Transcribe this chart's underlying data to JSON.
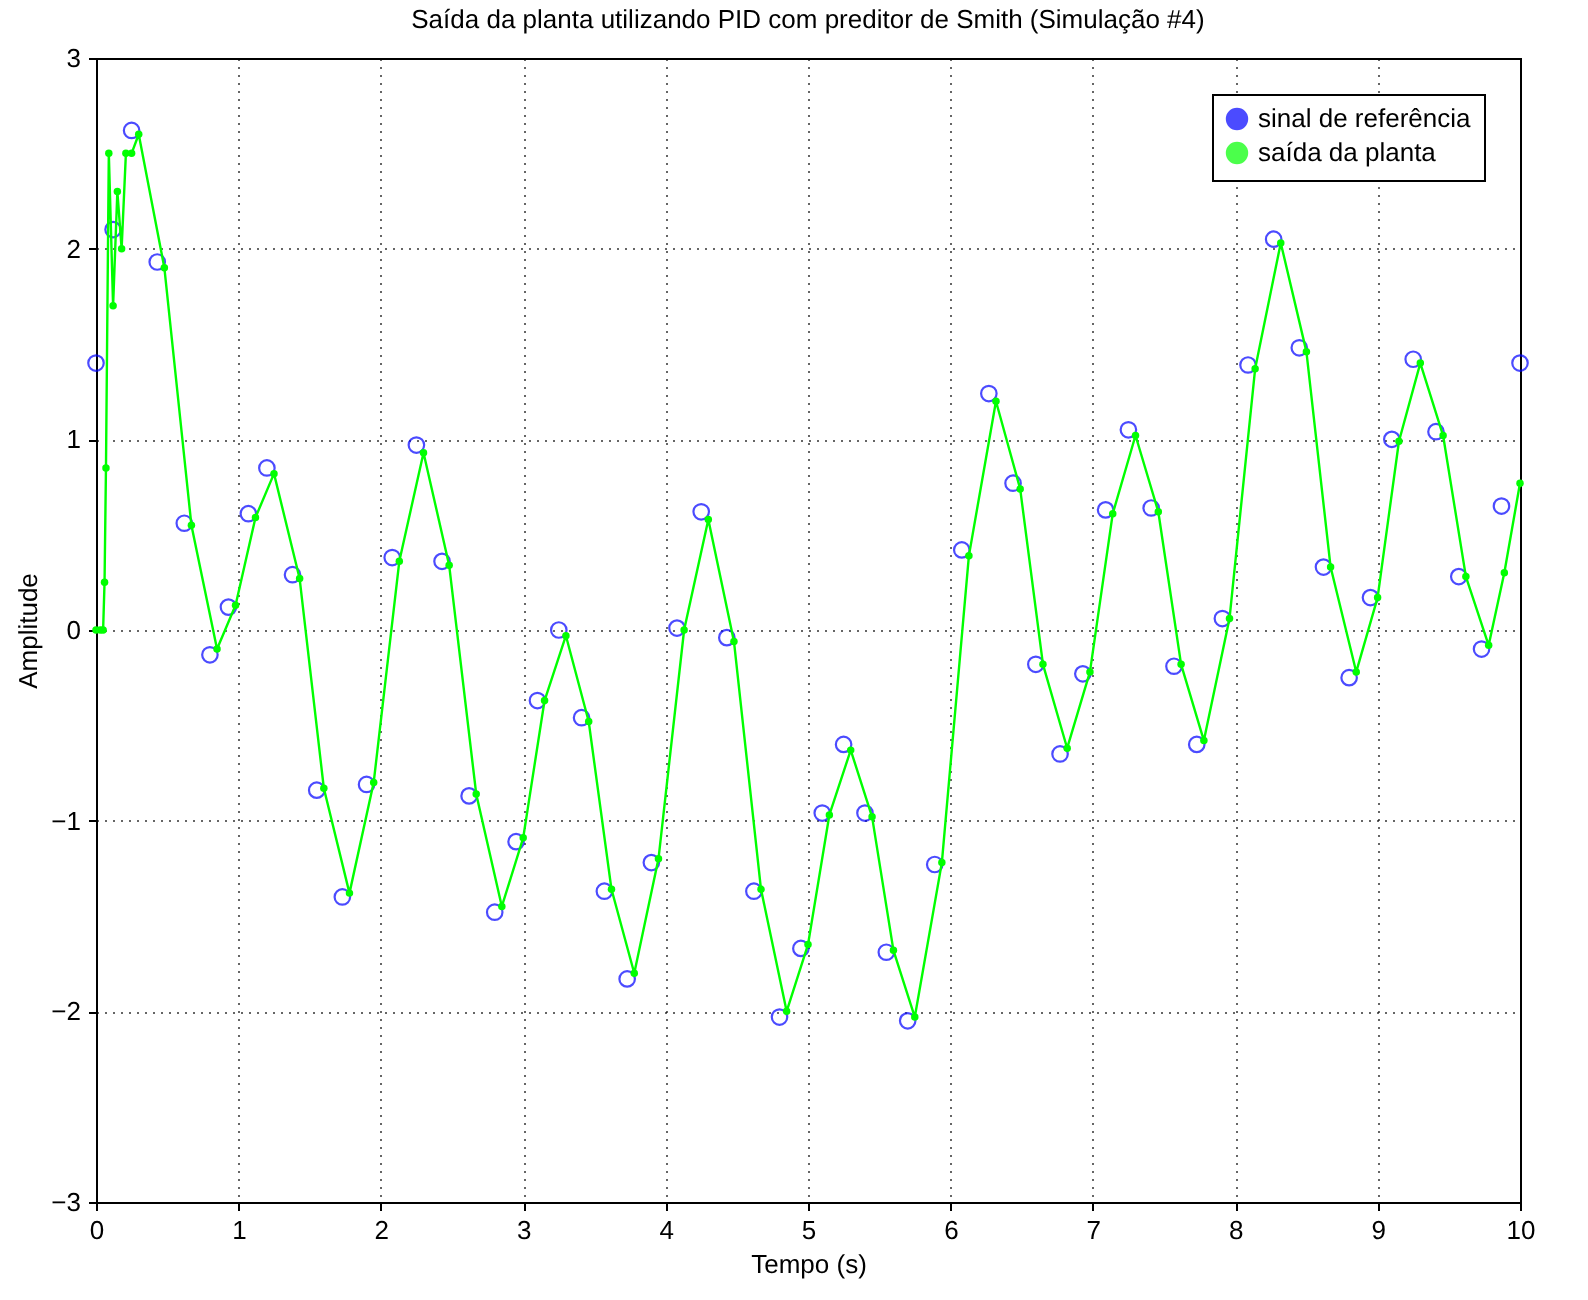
{
  "chart_data": {
    "type": "line",
    "title": "Saída da planta utilizando PID com preditor de Smith (Simulação #4)",
    "xlabel": "Tempo (s)",
    "ylabel": "Amplitude",
    "xlim": [
      0,
      10
    ],
    "xticks": [
      0,
      1,
      2,
      3,
      4,
      5,
      6,
      7,
      8,
      9,
      10
    ],
    "ylim": [
      -3,
      3
    ],
    "yticks": [
      -3,
      -2,
      -1,
      0,
      1,
      2,
      3
    ],
    "grid": true,
    "legend": "top right",
    "series": [
      {
        "name": "sinal de referência",
        "type": "scatter",
        "marker": "circle",
        "color": "#0000ff",
        "x": [
          0,
          0.12,
          0.25,
          0.43,
          0.62,
          0.8,
          0.93,
          1.07,
          1.2,
          1.38,
          1.55,
          1.73,
          1.9,
          2.08,
          2.25,
          2.43,
          2.62,
          2.8,
          2.95,
          3.1,
          3.25,
          3.41,
          3.57,
          3.73,
          3.9,
          4.08,
          4.25,
          4.43,
          4.62,
          4.8,
          4.95,
          5.1,
          5.25,
          5.4,
          5.55,
          5.7,
          5.89,
          6.08,
          6.27,
          6.44,
          6.6,
          6.77,
          6.93,
          7.09,
          7.25,
          7.41,
          7.57,
          7.73,
          7.91,
          8.09,
          8.27,
          8.45,
          8.62,
          8.8,
          8.95,
          9.1,
          9.25,
          9.41,
          9.57,
          9.73,
          9.87,
          10
        ],
        "values": [
          1.4,
          2.1,
          2.62,
          1.93,
          0.56,
          -0.13,
          0.12,
          0.61,
          0.85,
          0.29,
          -0.84,
          -1.4,
          -0.81,
          0.38,
          0.97,
          0.36,
          -0.87,
          -1.48,
          -1.11,
          -0.37,
          0,
          -0.46,
          -1.37,
          -1.83,
          -1.22,
          0.01,
          0.62,
          -0.04,
          -1.37,
          -2.03,
          -1.67,
          -0.96,
          -0.6,
          -0.96,
          -1.69,
          -2.05,
          -1.23,
          0.42,
          1.24,
          0.77,
          -0.18,
          -0.65,
          -0.23,
          0.63,
          1.05,
          0.64,
          -0.19,
          -0.6,
          0.06,
          1.39,
          2.05,
          1.48,
          0.33,
          -0.25,
          0.17,
          1.0,
          1.42,
          1.04,
          0.28,
          -0.1,
          0.65,
          1.4
        ]
      },
      {
        "name": "saída da planta",
        "marker": "circle",
        "color": "#00ff00",
        "x": [
          0,
          0.03,
          0.05,
          0.06,
          0.07,
          0.09,
          0.12,
          0.15,
          0.18,
          0.21,
          0.25,
          0.3,
          0.48,
          0.67,
          0.85,
          0.98,
          1.12,
          1.25,
          1.43,
          1.6,
          1.78,
          1.95,
          2.13,
          2.3,
          2.48,
          2.67,
          2.85,
          3.0,
          3.15,
          3.3,
          3.46,
          3.62,
          3.78,
          3.95,
          4.13,
          4.3,
          4.48,
          4.67,
          4.85,
          5.0,
          5.15,
          5.3,
          5.45,
          5.6,
          5.75,
          5.94,
          6.13,
          6.32,
          6.49,
          6.65,
          6.82,
          6.98,
          7.14,
          7.3,
          7.46,
          7.62,
          7.78,
          7.96,
          8.14,
          8.32,
          8.5,
          8.67,
          8.85,
          9.0,
          9.15,
          9.3,
          9.46,
          9.62,
          9.78,
          9.89,
          10
        ],
        "values": [
          0,
          0,
          0,
          0.25,
          0.85,
          2.5,
          1.7,
          2.3,
          2.0,
          2.5,
          2.5,
          2.6,
          1.9,
          0.55,
          -0.1,
          0.13,
          0.59,
          0.82,
          0.27,
          -0.83,
          -1.38,
          -0.8,
          0.36,
          0.93,
          0.34,
          -0.86,
          -1.45,
          -1.09,
          -0.37,
          -0.03,
          -0.48,
          -1.36,
          -1.8,
          -1.2,
          0.0,
          0.58,
          -0.06,
          -1.36,
          -2.0,
          -1.65,
          -0.97,
          -0.63,
          -0.98,
          -1.68,
          -2.03,
          -1.22,
          0.39,
          1.2,
          0.74,
          -0.18,
          -0.62,
          -0.22,
          0.61,
          1.02,
          0.62,
          -0.18,
          -0.58,
          0.06,
          1.37,
          2.03,
          1.46,
          0.33,
          -0.22,
          0.17,
          0.99,
          1.4,
          1.02,
          0.28,
          -0.08,
          0.3,
          0.77
        ]
      }
    ]
  }
}
